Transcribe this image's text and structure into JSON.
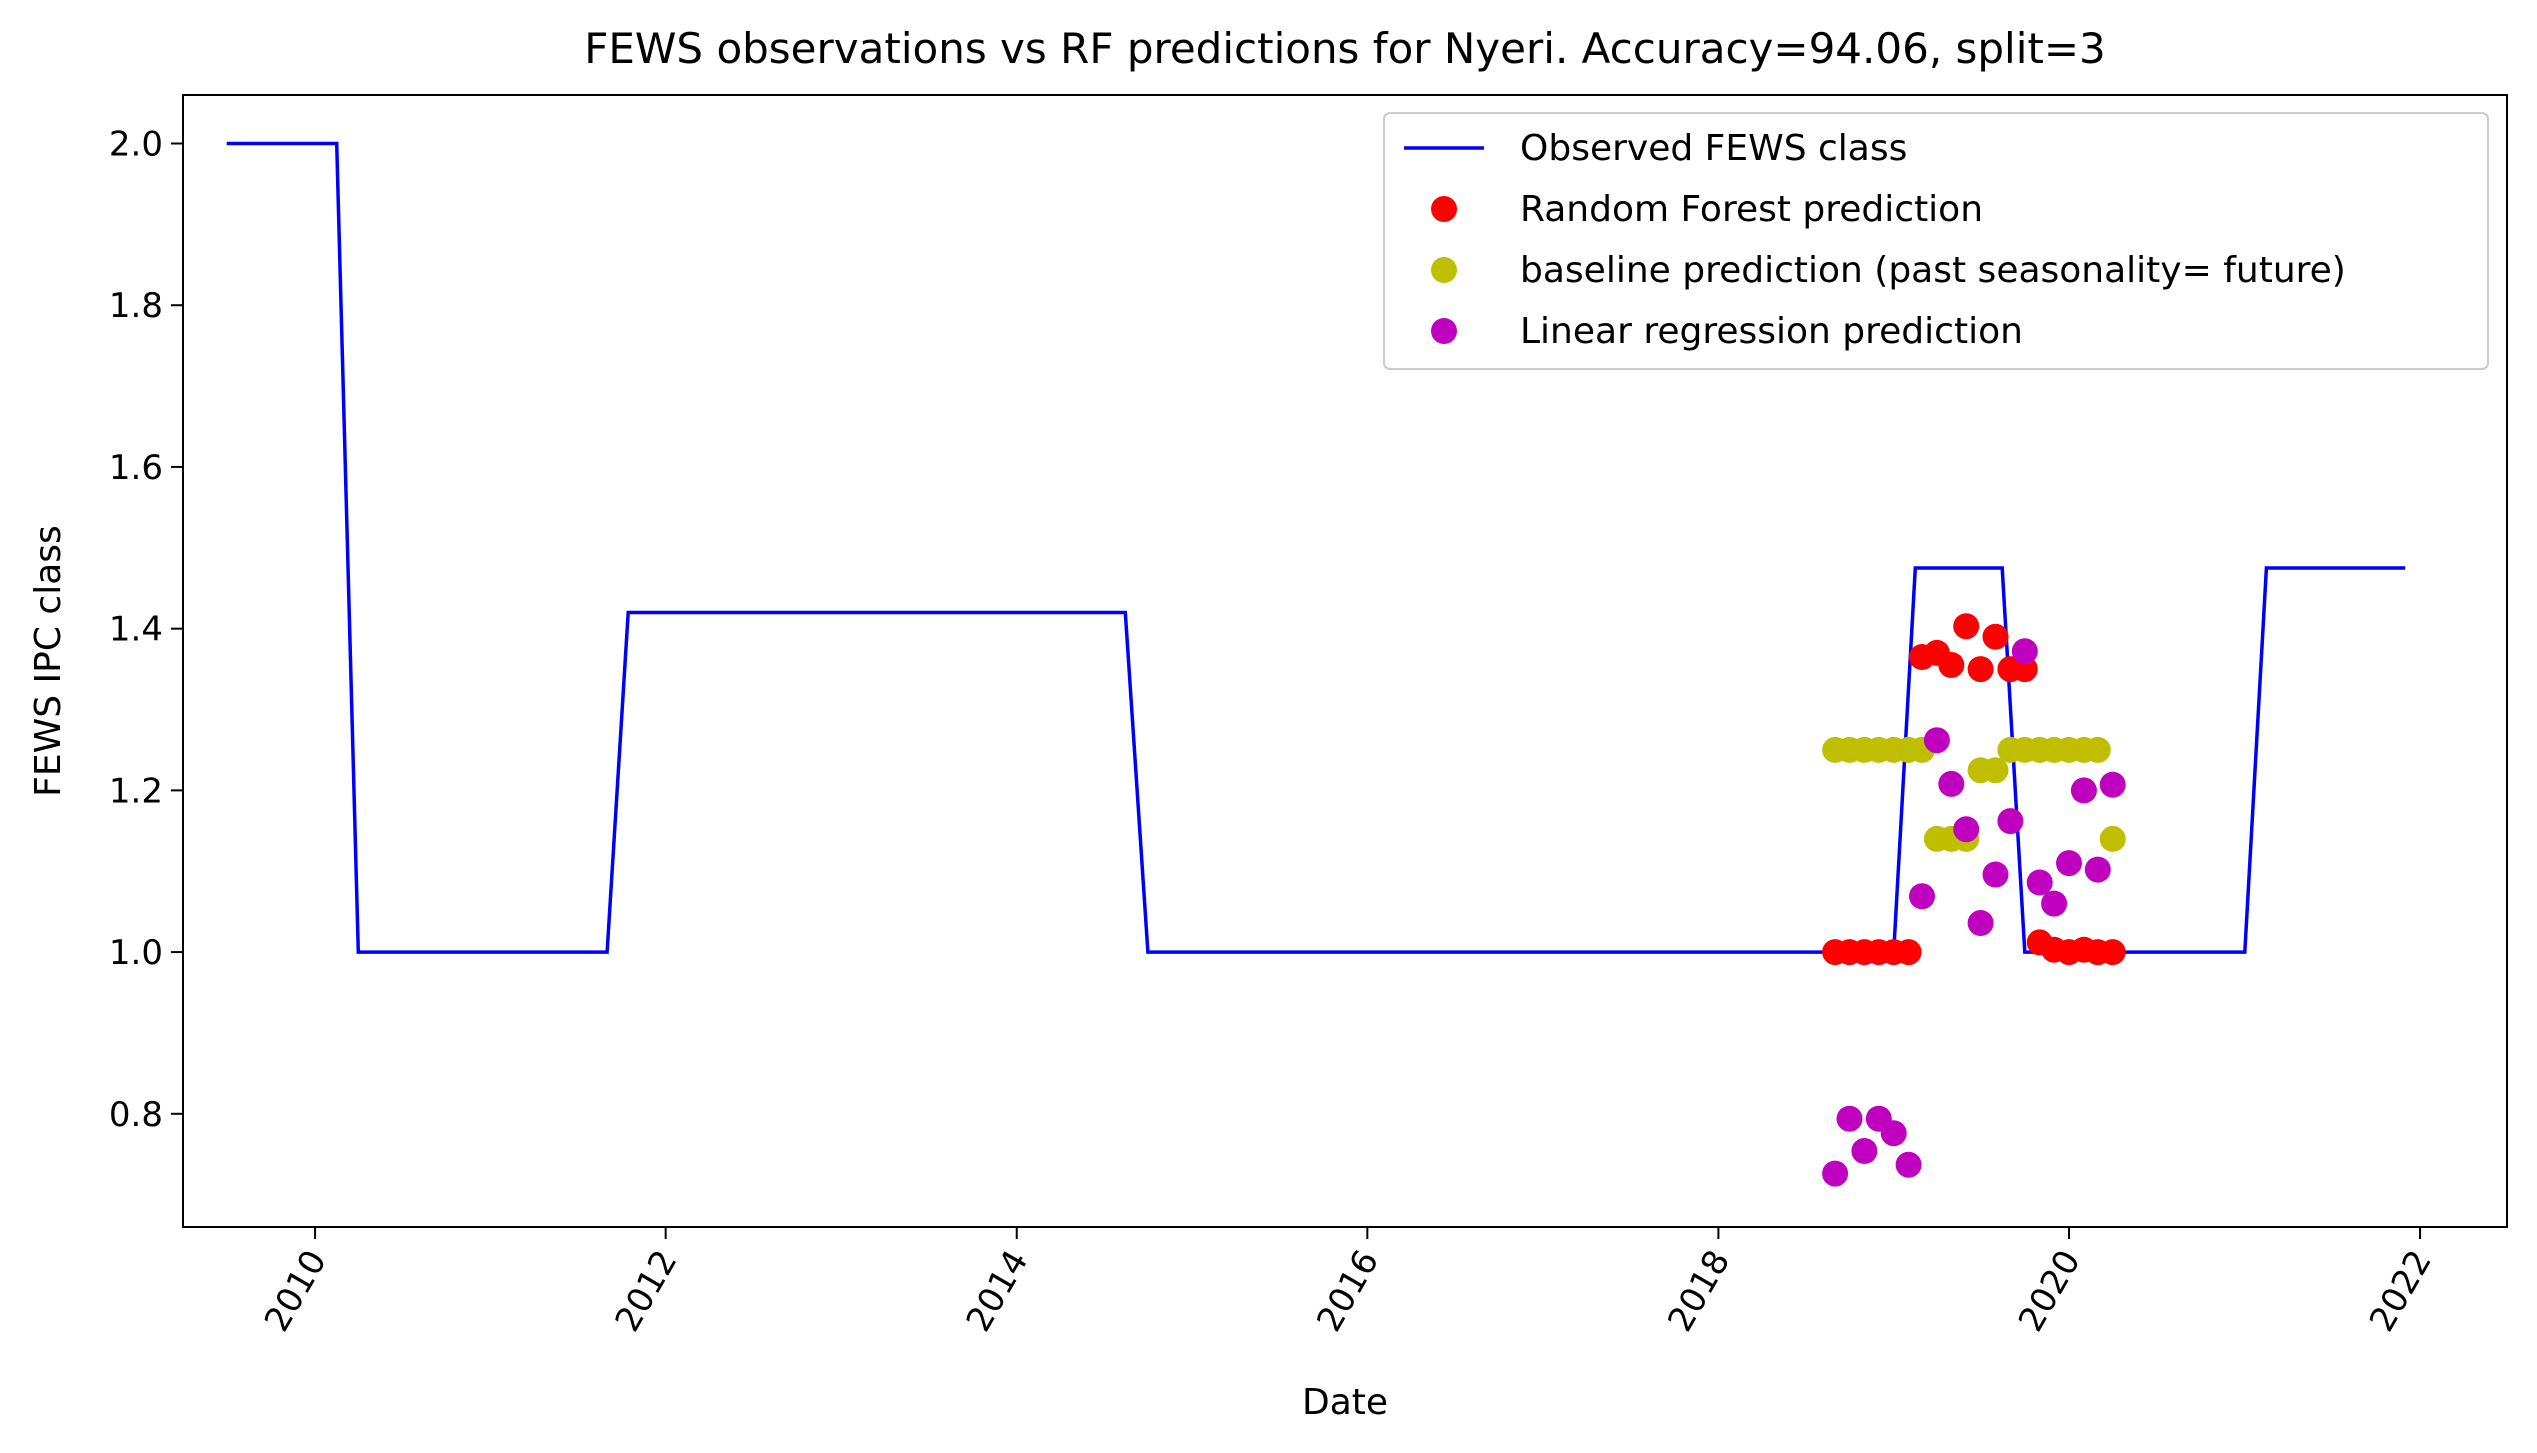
{
  "chart_data": {
    "type": "line",
    "title": "FEWS observations vs RF predictions for Nyeri. Accuracy=94.06, split=3",
    "xlabel": "Date",
    "ylabel": "FEWS IPC class",
    "xlim": [
      "2009-04-01",
      "2022-07-01"
    ],
    "ylim": [
      0.66,
      2.06
    ],
    "x_ticks": [
      "2010",
      "2012",
      "2014",
      "2016",
      "2018",
      "2020",
      "2022"
    ],
    "y_ticks": [
      "0.8",
      "1.0",
      "1.2",
      "1.4",
      "1.6",
      "1.8",
      "2.0"
    ],
    "grid": false,
    "legend_position": "upper right",
    "series": [
      {
        "name": "Observed FEWS class",
        "kind": "line",
        "color": "#0000ff",
        "points": [
          [
            "2009-07-01",
            2.0
          ],
          [
            "2010-02-15",
            2.0
          ],
          [
            "2010-04-01",
            1.0
          ],
          [
            "2011-09-01",
            1.0
          ],
          [
            "2011-10-15",
            1.42
          ],
          [
            "2014-08-15",
            1.42
          ],
          [
            "2014-10-01",
            1.0
          ],
          [
            "2019-01-01",
            1.0
          ],
          [
            "2019-02-15",
            1.475
          ],
          [
            "2019-08-15",
            1.475
          ],
          [
            "2019-10-01",
            1.0
          ],
          [
            "2021-01-01",
            1.0
          ],
          [
            "2021-02-15",
            1.475
          ],
          [
            "2021-12-01",
            1.475
          ]
        ]
      },
      {
        "name": "Random Forest prediction",
        "kind": "scatter",
        "color": "#ff0000",
        "points": [
          [
            "2018-09-01",
            1.0
          ],
          [
            "2018-10-01",
            1.0
          ],
          [
            "2018-11-01",
            1.0
          ],
          [
            "2018-12-01",
            1.0
          ],
          [
            "2019-01-01",
            1.0
          ],
          [
            "2019-02-01",
            1.0
          ],
          [
            "2019-03-01",
            1.365
          ],
          [
            "2019-04-01",
            1.37
          ],
          [
            "2019-05-01",
            1.355
          ],
          [
            "2019-06-01",
            1.403
          ],
          [
            "2019-07-01",
            1.35
          ],
          [
            "2019-08-01",
            1.39
          ],
          [
            "2019-09-01",
            1.35
          ],
          [
            "2019-10-01",
            1.35
          ],
          [
            "2019-11-01",
            1.012
          ],
          [
            "2019-12-01",
            1.003
          ],
          [
            "2020-01-01",
            1.0
          ],
          [
            "2020-02-01",
            1.003
          ],
          [
            "2020-03-01",
            1.0
          ],
          [
            "2020-04-01",
            1.0
          ]
        ]
      },
      {
        "name": "baseline prediction (past seasonality= future)",
        "kind": "scatter",
        "color": "#bfbf00",
        "points": [
          [
            "2018-09-01",
            1.25
          ],
          [
            "2018-10-01",
            1.25
          ],
          [
            "2018-11-01",
            1.25
          ],
          [
            "2018-12-01",
            1.25
          ],
          [
            "2019-01-01",
            1.25
          ],
          [
            "2019-02-01",
            1.25
          ],
          [
            "2019-03-01",
            1.25
          ],
          [
            "2019-04-01",
            1.14
          ],
          [
            "2019-05-01",
            1.14
          ],
          [
            "2019-06-01",
            1.14
          ],
          [
            "2019-07-01",
            1.225
          ],
          [
            "2019-08-01",
            1.225
          ],
          [
            "2019-09-01",
            1.25
          ],
          [
            "2019-10-01",
            1.25
          ],
          [
            "2019-11-01",
            1.25
          ],
          [
            "2019-12-01",
            1.25
          ],
          [
            "2020-01-01",
            1.25
          ],
          [
            "2020-02-01",
            1.25
          ],
          [
            "2020-03-01",
            1.25
          ],
          [
            "2020-04-01",
            1.14
          ]
        ]
      },
      {
        "name": "Linear regression prediction",
        "kind": "scatter",
        "color": "#bf00bf",
        "points": [
          [
            "2018-09-01",
            0.726
          ],
          [
            "2018-10-01",
            0.794
          ],
          [
            "2018-11-01",
            0.754
          ],
          [
            "2018-12-01",
            0.794
          ],
          [
            "2019-01-01",
            0.776
          ],
          [
            "2019-02-01",
            0.737
          ],
          [
            "2019-03-01",
            1.069
          ],
          [
            "2019-04-01",
            1.262
          ],
          [
            "2019-05-01",
            1.208
          ],
          [
            "2019-06-01",
            1.152
          ],
          [
            "2019-07-01",
            1.036
          ],
          [
            "2019-08-01",
            1.096
          ],
          [
            "2019-09-01",
            1.162
          ],
          [
            "2019-10-01",
            1.372
          ],
          [
            "2019-11-01",
            1.086
          ],
          [
            "2019-12-01",
            1.06
          ],
          [
            "2020-01-01",
            1.11
          ],
          [
            "2020-02-01",
            1.2
          ],
          [
            "2020-03-01",
            1.102
          ],
          [
            "2020-04-01",
            1.207
          ]
        ]
      }
    ]
  }
}
